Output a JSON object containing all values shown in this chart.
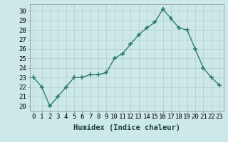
{
  "x": [
    0,
    1,
    2,
    3,
    4,
    5,
    6,
    7,
    8,
    9,
    10,
    11,
    12,
    13,
    14,
    15,
    16,
    17,
    18,
    19,
    20,
    21,
    22,
    23
  ],
  "y": [
    23,
    22,
    20,
    21,
    22,
    23,
    23,
    23.3,
    23.3,
    23.5,
    25,
    25.5,
    26.5,
    27.5,
    28.2,
    28.8,
    30.2,
    29.2,
    28.2,
    28.0,
    26.0,
    24.0,
    23.0,
    22.2
  ],
  "line_color": "#2e7d6e",
  "marker": "+",
  "marker_size": 5,
  "marker_lw": 1.2,
  "bg_color": "#cce8e8",
  "grid_color": "#b0cccc",
  "xlabel": "Humidex (Indice chaleur)",
  "xlim": [
    -0.5,
    23.5
  ],
  "ylim": [
    19.5,
    30.7
  ],
  "yticks": [
    20,
    21,
    22,
    23,
    24,
    25,
    26,
    27,
    28,
    29,
    30
  ],
  "xticks": [
    0,
    1,
    2,
    3,
    4,
    5,
    6,
    7,
    8,
    9,
    10,
    11,
    12,
    13,
    14,
    15,
    16,
    17,
    18,
    19,
    20,
    21,
    22,
    23
  ],
  "xlabel_fontsize": 7.5,
  "tick_fontsize": 6.5,
  "linewidth": 1.0
}
